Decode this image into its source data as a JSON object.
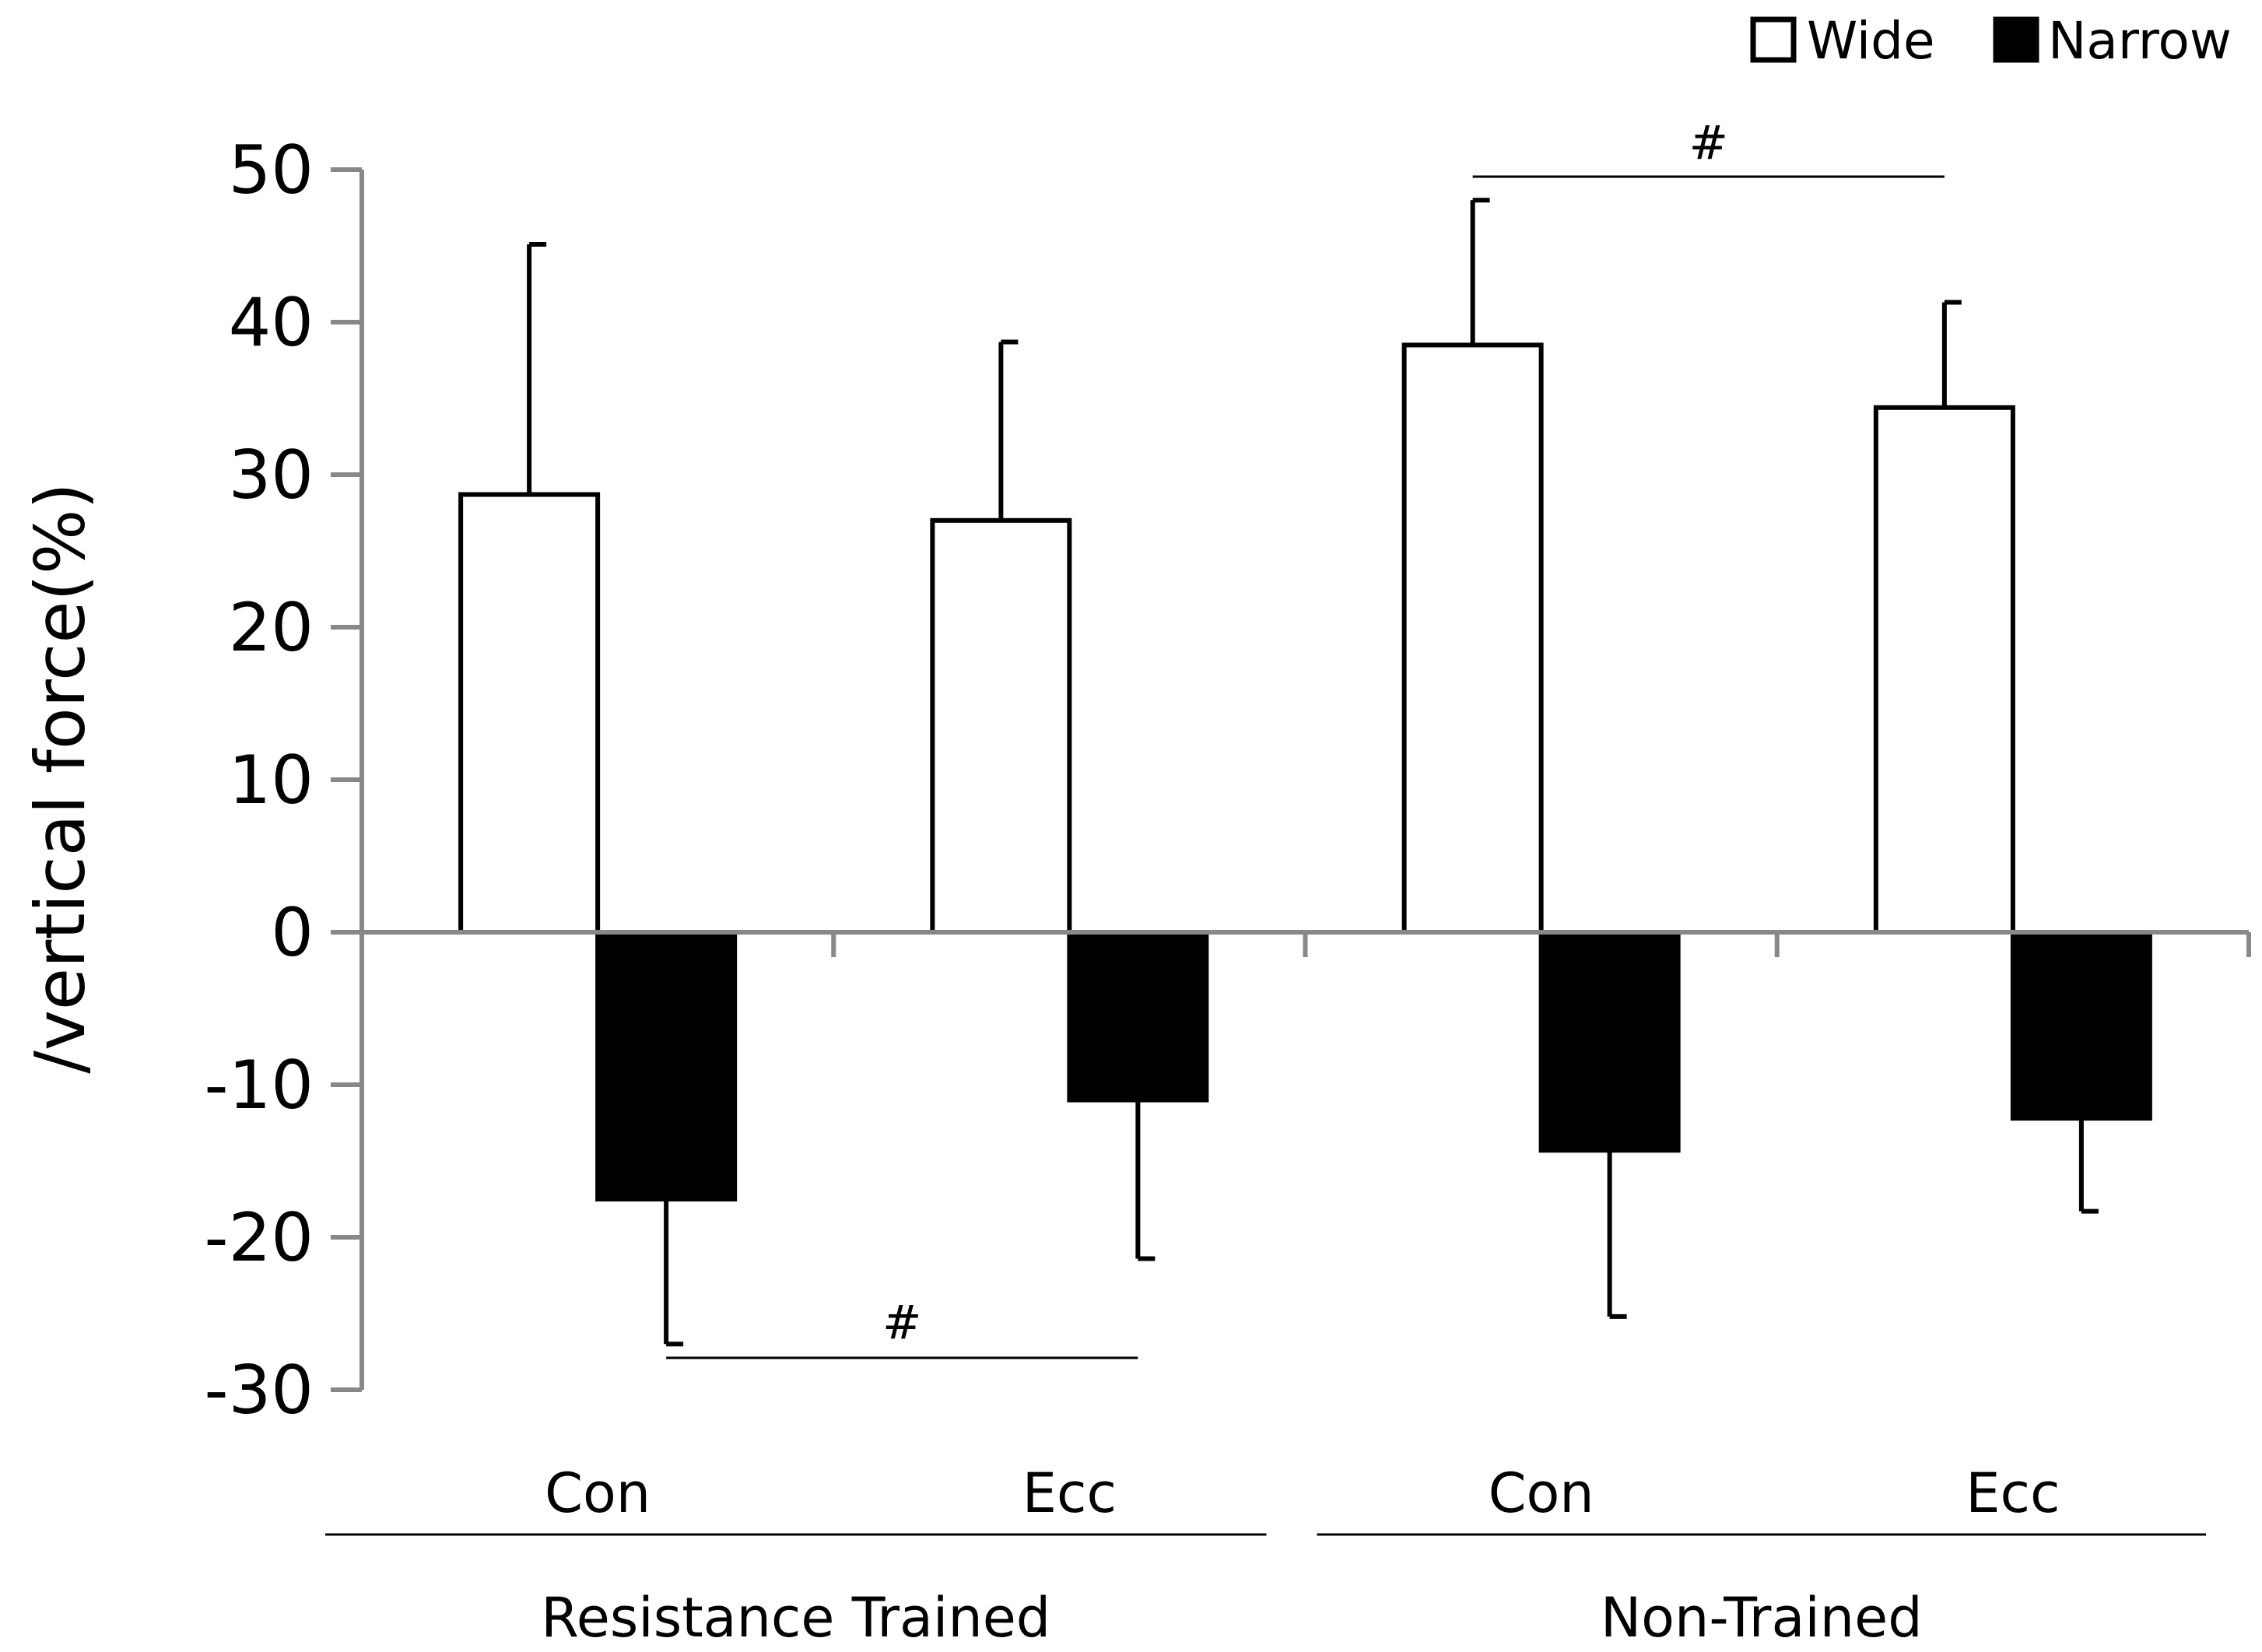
{
  "chart_data": {
    "type": "bar",
    "title": "",
    "ylabel": "/vertical force(%)",
    "xlabel": "",
    "ylim": [
      -30,
      50
    ],
    "yticks": [
      50,
      40,
      30,
      20,
      10,
      0,
      -10,
      -20,
      -30
    ],
    "categories": [
      "Con",
      "Ecc",
      "Con",
      "Ecc"
    ],
    "groups": [
      {
        "label": "Resistance Trained",
        "categories": [
          0,
          1
        ]
      },
      {
        "label": "Non-Trained",
        "categories": [
          2,
          3
        ]
      }
    ],
    "series": [
      {
        "name": "Wide",
        "fill": "#ffffff",
        "values": [
          28.7,
          27.0,
          38.5,
          34.4
        ],
        "errors": [
          16.4,
          11.7,
          9.5,
          6.9
        ],
        "error_direction": "up"
      },
      {
        "name": "Narrow",
        "fill": "#000000",
        "values": [
          -17.5,
          -11.0,
          -14.3,
          -12.2
        ],
        "errors": [
          9.5,
          10.4,
          10.9,
          6.1
        ],
        "error_direction": "down"
      }
    ],
    "legend": {
      "position": "top-right",
      "entries": [
        "Wide",
        "Narrow"
      ]
    },
    "annotations": [
      {
        "text": "#",
        "compares": "Narrow Con vs Narrow Ecc, Resistance Trained"
      },
      {
        "text": "#",
        "compares": "Wide Con vs Wide Ecc, Non-Trained"
      }
    ],
    "grid": false
  }
}
